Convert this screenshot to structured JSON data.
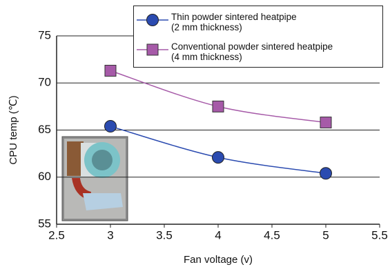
{
  "chart_data": {
    "type": "line",
    "x": [
      3,
      4,
      5
    ],
    "series": [
      {
        "name": "Thin powder sintered heatpipe\n(2 mm thickness)",
        "color": "#2b4bb0",
        "marker": "circle",
        "values": [
          65.4,
          62.1,
          60.4
        ]
      },
      {
        "name": "Conventional powder sintered heatpipe\n(4 mm thickness)",
        "color": "#a65aa8",
        "marker": "square",
        "values": [
          71.3,
          67.5,
          65.8
        ]
      }
    ],
    "xlabel": "Fan voltage (v)",
    "ylabel": "CPU temp (℃)",
    "xlim": [
      2.5,
      5.5
    ],
    "xticks": [
      2.5,
      3,
      3.5,
      4,
      4.5,
      5,
      5.5
    ],
    "ylim": [
      55,
      75
    ],
    "yticks": [
      55,
      60,
      65,
      70,
      75
    ],
    "grid": true
  }
}
